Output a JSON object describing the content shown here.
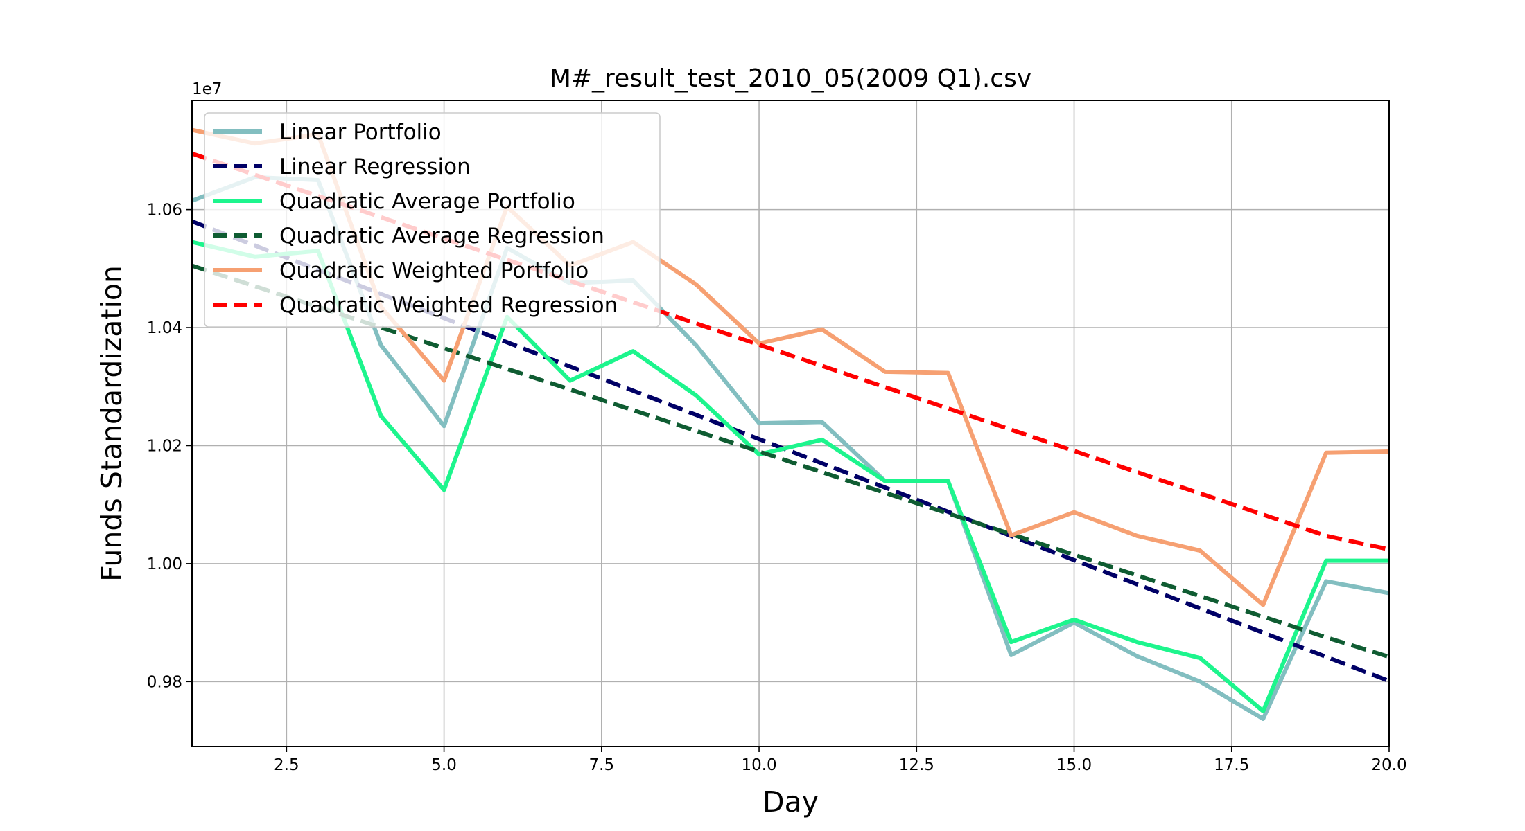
{
  "chart_data": {
    "type": "line",
    "title": "M#_result_test_2010_05(2009 Q1).csv",
    "xlabel": "Day",
    "ylabel": "Funds Standardization",
    "y_offset_label": "1e7",
    "xlim": [
      1,
      20
    ],
    "ylim": [
      0.969,
      1.0785
    ],
    "x_ticks": [
      2.5,
      5.0,
      7.5,
      10.0,
      12.5,
      15.0,
      17.5,
      20.0
    ],
    "x_tick_labels": [
      "2.5",
      "5.0",
      "7.5",
      "10.0",
      "12.5",
      "15.0",
      "17.5",
      "20.0"
    ],
    "y_ticks": [
      0.98,
      1.0,
      1.02,
      1.04,
      1.06
    ],
    "y_tick_labels": [
      "0.98",
      "1.00",
      "1.02",
      "1.04",
      "1.06"
    ],
    "grid": true,
    "legend_position": "top-left",
    "x": [
      1,
      2,
      3,
      4,
      5,
      6,
      7,
      8,
      9,
      10,
      11,
      12,
      13,
      14,
      15,
      16,
      17,
      18,
      19,
      20
    ],
    "series": [
      {
        "name": "Linear Portfolio",
        "style": "solid",
        "color": "#82bec0",
        "values": [
          1.0615,
          1.0655,
          1.065,
          1.037,
          1.0233,
          1.0535,
          1.0475,
          1.048,
          1.037,
          1.0238,
          1.024,
          1.014,
          1.014,
          0.9845,
          0.99,
          0.9843,
          0.98,
          0.9737,
          0.997,
          0.995
        ]
      },
      {
        "name": "Linear Regression",
        "style": "dashed",
        "color": "#000066",
        "values": [
          1.058,
          1.0539,
          1.0498,
          1.0457,
          1.0416,
          1.0375,
          1.0334,
          1.0293,
          1.0252,
          1.0211,
          1.017,
          1.0129,
          1.0088,
          1.0047,
          1.0006,
          0.9965,
          0.9924,
          0.9883,
          0.9842,
          0.9801
        ]
      },
      {
        "name": "Quadratic Average Portfolio",
        "style": "solid",
        "color": "#1df58d",
        "values": [
          1.0545,
          1.052,
          1.053,
          1.025,
          1.0125,
          1.0418,
          1.031,
          1.036,
          1.0285,
          1.0185,
          1.021,
          1.014,
          1.014,
          0.9867,
          0.9905,
          0.9867,
          0.984,
          0.975,
          1.0005,
          1.0005
        ]
      },
      {
        "name": "Quadratic Average Regression",
        "style": "dashed",
        "color": "#0f5c32",
        "values": [
          1.0505,
          1.047,
          1.0435,
          1.04,
          1.0365,
          1.033,
          1.0295,
          1.026,
          1.0225,
          1.019,
          1.0155,
          1.012,
          1.0085,
          1.005,
          1.0015,
          0.998,
          0.9945,
          0.991,
          0.9875,
          0.9842
        ]
      },
      {
        "name": "Quadratic Weighted Portfolio",
        "style": "solid",
        "color": "#f6a072",
        "values": [
          1.0735,
          1.0712,
          1.0728,
          1.0435,
          1.031,
          1.0605,
          1.0505,
          1.0545,
          1.0473,
          1.0373,
          1.0397,
          1.0325,
          1.0323,
          1.0048,
          1.0087,
          1.0047,
          1.0022,
          0.993,
          1.0188,
          1.019
        ]
      },
      {
        "name": "Quadratic Weighted Regression",
        "style": "dashed",
        "color": "#ff0000",
        "values": [
          1.0695,
          1.0659,
          1.0623,
          1.0587,
          1.0551,
          1.0515,
          1.0479,
          1.0443,
          1.0407,
          1.0371,
          1.0335,
          1.0299,
          1.0263,
          1.0227,
          1.0191,
          1.0155,
          1.0119,
          1.0083,
          1.0047,
          1.0024
        ]
      }
    ]
  }
}
